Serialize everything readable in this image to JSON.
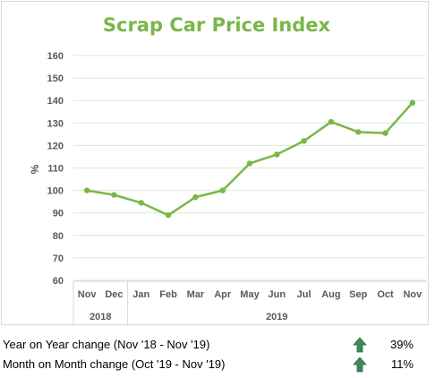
{
  "chart_data": {
    "type": "line",
    "title": "Scrap Car Price Index",
    "ylabel": "%",
    "ylim": [
      60,
      160
    ],
    "yticks": [
      60,
      70,
      80,
      90,
      100,
      110,
      120,
      130,
      140,
      150,
      160
    ],
    "categories": [
      "Nov",
      "Dec",
      "Jan",
      "Feb",
      "Mar",
      "Apr",
      "May",
      "Jun",
      "Jul",
      "Aug",
      "Sep",
      "Oct",
      "Nov"
    ],
    "year_groups": [
      {
        "label": "2018",
        "count": 2
      },
      {
        "label": "2019",
        "count": 11
      }
    ],
    "series": [
      {
        "values": [
          100,
          98,
          94.5,
          89,
          97,
          100,
          112,
          116,
          122,
          130.5,
          126,
          125.5,
          139
        ]
      }
    ],
    "line_color": "#7ab648",
    "grid": true
  },
  "summary": [
    {
      "label": "Year on Year change (Nov '18 - Nov '19)",
      "value": "39%",
      "icon": "up-arrow-icon"
    },
    {
      "label": "Month on Month change (Oct '19 - Nov '19)",
      "value": "11%",
      "icon": "up-arrow-icon"
    }
  ]
}
